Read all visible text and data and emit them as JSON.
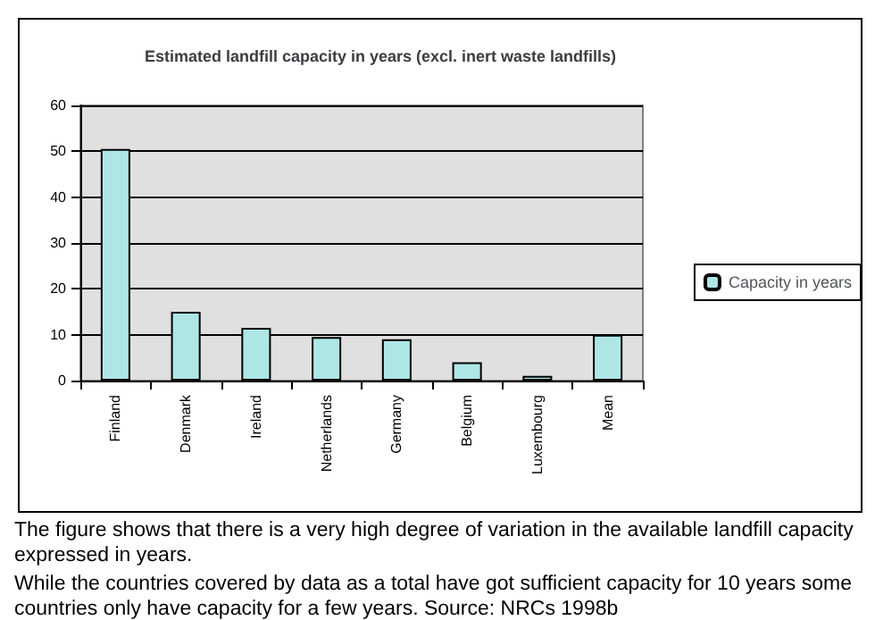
{
  "chart_data": {
    "type": "bar",
    "title": "Estimated landfill capacity in years (excl. inert waste landfills)",
    "categories": [
      "Finland",
      "Denmark",
      "Ireland",
      "Netherlands",
      "Germany",
      "Belgium",
      "Luxembourg",
      "Mean"
    ],
    "series": [
      {
        "name": "Capacity in years",
        "color": "#aee6e6",
        "values": [
          50.5,
          15,
          11.5,
          9.5,
          9,
          4,
          1,
          10
        ]
      }
    ],
    "ylim": [
      0,
      60
    ],
    "yticks": [
      0,
      10,
      20,
      30,
      40,
      50,
      60
    ],
    "grid": "y",
    "legend": "right",
    "annotations": [
      "The figure shows that there is a very high degree of variation in the available landfill capacity expressed in years.",
      "While the countries covered by data as a total have got sufficient capacity for 10 years some countries only have capacity for a few years. Source: NRCs 1998b"
    ]
  }
}
